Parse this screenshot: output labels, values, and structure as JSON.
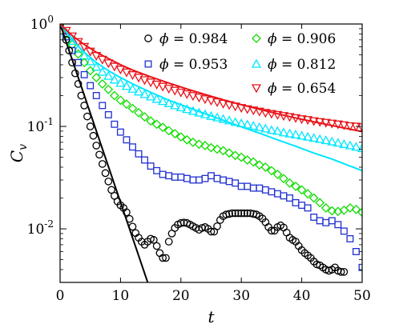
{
  "chart_data": {
    "type": "scatter",
    "title": "",
    "xlabel": "t",
    "ylabel_main": "C",
    "ylabel_sub": "v",
    "xlim": [
      0,
      50
    ],
    "ylim": [
      0.003,
      1
    ],
    "yscale": "log",
    "grid": false,
    "legend_placement": "top-right",
    "x_ticks": [
      0,
      10,
      20,
      30,
      40,
      50
    ],
    "x_tick_labels": [
      "0",
      "10",
      "20",
      "30",
      "40",
      "50"
    ],
    "y_ticks": [
      0.01,
      0.1,
      1
    ],
    "y_tick_labels": [
      {
        "base": "10",
        "exp": "-2"
      },
      {
        "base": "10",
        "exp": "-1"
      },
      {
        "base": "10",
        "exp": "0"
      }
    ],
    "series": [
      {
        "name": "ϕ = 0.984",
        "legend_symbol": "ϕ",
        "legend_value": " = 0.984",
        "marker": "circle",
        "color": "#000000",
        "x": [
          0,
          1,
          1.5,
          2,
          2.5,
          3,
          3.5,
          4,
          4.5,
          5,
          5.5,
          6,
          6.5,
          7,
          7.5,
          8,
          8.5,
          9,
          9.5,
          10,
          10.5,
          11,
          11.5,
          12,
          12.5,
          13,
          13.5,
          14,
          14.5,
          15,
          15.5,
          16,
          16.5,
          17,
          17.5,
          18,
          18.5,
          19,
          19.5,
          20,
          20.5,
          21,
          21.5,
          22,
          22.5,
          23,
          23.5,
          24,
          24.5,
          25,
          25.5,
          26,
          26.5,
          27,
          27.5,
          28,
          28.5,
          29,
          29.5,
          30,
          30.5,
          31,
          31.5,
          32,
          32.5,
          33,
          33.5,
          34,
          34.5,
          35,
          35.5,
          36,
          36.5,
          37,
          37.5,
          38,
          38.5,
          39,
          39.5,
          40,
          40.5,
          41,
          41.5,
          42,
          42.5,
          43,
          43.5,
          44,
          44.5,
          45,
          45.5,
          46,
          46.5,
          47
        ],
        "y": [
          1.0,
          0.7,
          0.55,
          0.42,
          0.33,
          0.26,
          0.2,
          0.16,
          0.125,
          0.1,
          0.081,
          0.065,
          0.053,
          0.043,
          0.035,
          0.029,
          0.024,
          0.021,
          0.0185,
          0.017,
          0.016,
          0.0145,
          0.0125,
          0.0105,
          0.0091,
          0.0082,
          0.0075,
          0.007,
          0.0075,
          0.008,
          0.0078,
          0.0068,
          0.0058,
          0.0052,
          0.0052,
          0.0075,
          0.009,
          0.0102,
          0.011,
          0.0114,
          0.0115,
          0.0114,
          0.011,
          0.0106,
          0.0102,
          0.0098,
          0.0102,
          0.0104,
          0.01,
          0.0094,
          0.0094,
          0.0106,
          0.0122,
          0.0133,
          0.0138,
          0.014,
          0.0142,
          0.0142,
          0.0142,
          0.0142,
          0.0142,
          0.0142,
          0.0142,
          0.014,
          0.0138,
          0.0133,
          0.0126,
          0.0116,
          0.0104,
          0.0096,
          0.0096,
          0.0104,
          0.0108,
          0.0103,
          0.0092,
          0.0082,
          0.0078,
          0.0075,
          0.0068,
          0.0062,
          0.0058,
          0.0055,
          0.0052,
          0.0048,
          0.0045,
          0.0044,
          0.0042,
          0.004,
          0.0039,
          0.004,
          0.0042,
          0.0039,
          0.0038,
          0.0038
        ]
      },
      {
        "name": "ϕ = 0.953",
        "legend_symbol": "ϕ",
        "legend_value": " = 0.953",
        "marker": "square",
        "color": "#1f2fd1",
        "x": [
          0,
          1,
          2,
          3,
          4,
          5,
          6,
          7,
          8,
          9,
          10,
          11,
          12,
          13,
          14,
          15,
          16,
          17,
          18,
          19,
          20,
          21,
          22,
          23,
          24,
          25,
          26,
          27,
          28,
          29,
          30,
          31,
          32,
          33,
          34,
          35,
          36,
          37,
          38,
          39,
          40,
          41,
          42,
          43,
          44,
          45,
          46,
          47,
          48,
          49,
          50
        ],
        "y": [
          1.0,
          0.75,
          0.55,
          0.42,
          0.32,
          0.25,
          0.2,
          0.16,
          0.13,
          0.105,
          0.088,
          0.074,
          0.063,
          0.054,
          0.047,
          0.041,
          0.037,
          0.034,
          0.033,
          0.032,
          0.032,
          0.031,
          0.03,
          0.03,
          0.031,
          0.033,
          0.031,
          0.03,
          0.029,
          0.028,
          0.026,
          0.026,
          0.025,
          0.025,
          0.024,
          0.023,
          0.022,
          0.021,
          0.02,
          0.018,
          0.017,
          0.016,
          0.013,
          0.012,
          0.0115,
          0.012,
          0.011,
          0.0095,
          0.008,
          0.006,
          0.0042
        ]
      },
      {
        "name": "ϕ = 0.906",
        "legend_symbol": "ϕ",
        "legend_value": " = 0.906",
        "marker": "diamond",
        "color": "#11dd00",
        "x": [
          0,
          1,
          2,
          3,
          4,
          5,
          6,
          7,
          8,
          9,
          10,
          11,
          12,
          13,
          14,
          15,
          16,
          17,
          18,
          19,
          20,
          21,
          22,
          23,
          24,
          25,
          26,
          27,
          28,
          29,
          30,
          31,
          32,
          33,
          34,
          35,
          36,
          37,
          38,
          39,
          40,
          41,
          42,
          43,
          44,
          45,
          46,
          47,
          48,
          49,
          50
        ],
        "y": [
          1.0,
          0.8,
          0.63,
          0.51,
          0.42,
          0.35,
          0.3,
          0.26,
          0.23,
          0.2,
          0.18,
          0.165,
          0.15,
          0.136,
          0.124,
          0.113,
          0.105,
          0.098,
          0.091,
          0.085,
          0.079,
          0.074,
          0.07,
          0.067,
          0.065,
          0.062,
          0.06,
          0.058,
          0.055,
          0.052,
          0.05,
          0.047,
          0.045,
          0.042,
          0.04,
          0.037,
          0.034,
          0.031,
          0.028,
          0.026,
          0.024,
          0.022,
          0.02,
          0.018,
          0.016,
          0.015,
          0.0148,
          0.0152,
          0.016,
          0.0155,
          0.0145
        ]
      },
      {
        "name": "ϕ = 0.812",
        "legend_symbol": "ϕ",
        "legend_value": " = 0.812",
        "marker": "triangle-up",
        "color": "#00e6ff",
        "x": [
          0,
          1,
          2,
          3,
          4,
          5,
          6,
          7,
          8,
          9,
          10,
          11,
          12,
          13,
          14,
          15,
          16,
          17,
          18,
          19,
          20,
          21,
          22,
          23,
          24,
          25,
          26,
          27,
          28,
          29,
          30,
          31,
          32,
          33,
          34,
          35,
          36,
          37,
          38,
          39,
          40,
          41,
          42,
          43,
          44,
          45,
          46,
          47,
          48,
          49,
          50
        ],
        "y": [
          1.0,
          0.82,
          0.68,
          0.57,
          0.49,
          0.43,
          0.38,
          0.34,
          0.31,
          0.285,
          0.265,
          0.247,
          0.232,
          0.218,
          0.206,
          0.195,
          0.185,
          0.176,
          0.168,
          0.16,
          0.153,
          0.147,
          0.141,
          0.136,
          0.131,
          0.126,
          0.122,
          0.118,
          0.114,
          0.11,
          0.107,
          0.104,
          0.101,
          0.098,
          0.095,
          0.092,
          0.09,
          0.087,
          0.085,
          0.083,
          0.081,
          0.079,
          0.077,
          0.075,
          0.073,
          0.071,
          0.069,
          0.067,
          0.065,
          0.063,
          0.061
        ]
      },
      {
        "name": "ϕ = 0.654",
        "legend_symbol": "ϕ",
        "legend_value": " = 0.654",
        "marker": "triangle-down",
        "color": "#e8141a",
        "x": [
          0,
          1,
          2,
          3,
          4,
          5,
          6,
          7,
          8,
          9,
          10,
          11,
          12,
          13,
          14,
          15,
          16,
          17,
          18,
          19,
          20,
          21,
          22,
          23,
          24,
          25,
          26,
          27,
          28,
          29,
          30,
          31,
          32,
          33,
          34,
          35,
          36,
          37,
          38,
          39,
          40,
          41,
          42,
          43,
          44,
          45,
          46,
          47,
          48,
          49,
          50
        ],
        "y": [
          1.0,
          0.86,
          0.76,
          0.67,
          0.6,
          0.54,
          0.49,
          0.45,
          0.415,
          0.385,
          0.36,
          0.338,
          0.318,
          0.3,
          0.284,
          0.27,
          0.257,
          0.245,
          0.234,
          0.224,
          0.215,
          0.207,
          0.199,
          0.192,
          0.185,
          0.179,
          0.173,
          0.167,
          0.162,
          0.157,
          0.152,
          0.148,
          0.144,
          0.14,
          0.136,
          0.133,
          0.13,
          0.127,
          0.124,
          0.121,
          0.118,
          0.116,
          0.113,
          0.111,
          0.109,
          0.107,
          0.105,
          0.103,
          0.101,
          0.1,
          0.098
        ]
      }
    ],
    "fit_lines": [
      {
        "color": "#000000",
        "x": [
          0,
          14.5
        ],
        "y": [
          1.0,
          0.003
        ]
      },
      {
        "color": "#00e6ff",
        "x": [
          0,
          2,
          4,
          6,
          8,
          10,
          12,
          15,
          18,
          21,
          24,
          27,
          30,
          33,
          36,
          39,
          42,
          45,
          48,
          50
        ],
        "y": [
          1.0,
          0.7,
          0.53,
          0.42,
          0.35,
          0.3,
          0.26,
          0.215,
          0.18,
          0.155,
          0.133,
          0.115,
          0.099,
          0.086,
          0.074,
          0.064,
          0.055,
          0.048,
          0.041,
          0.037
        ]
      },
      {
        "color": "#e8141a",
        "x": [
          0,
          2,
          4,
          6,
          8,
          10,
          12,
          15,
          18,
          21,
          24,
          27,
          30,
          33,
          36,
          39,
          42,
          45,
          48,
          50
        ],
        "y": [
          1.0,
          0.77,
          0.63,
          0.53,
          0.46,
          0.4,
          0.355,
          0.305,
          0.265,
          0.232,
          0.205,
          0.182,
          0.163,
          0.147,
          0.133,
          0.121,
          0.111,
          0.102,
          0.094,
          0.089
        ]
      }
    ]
  }
}
